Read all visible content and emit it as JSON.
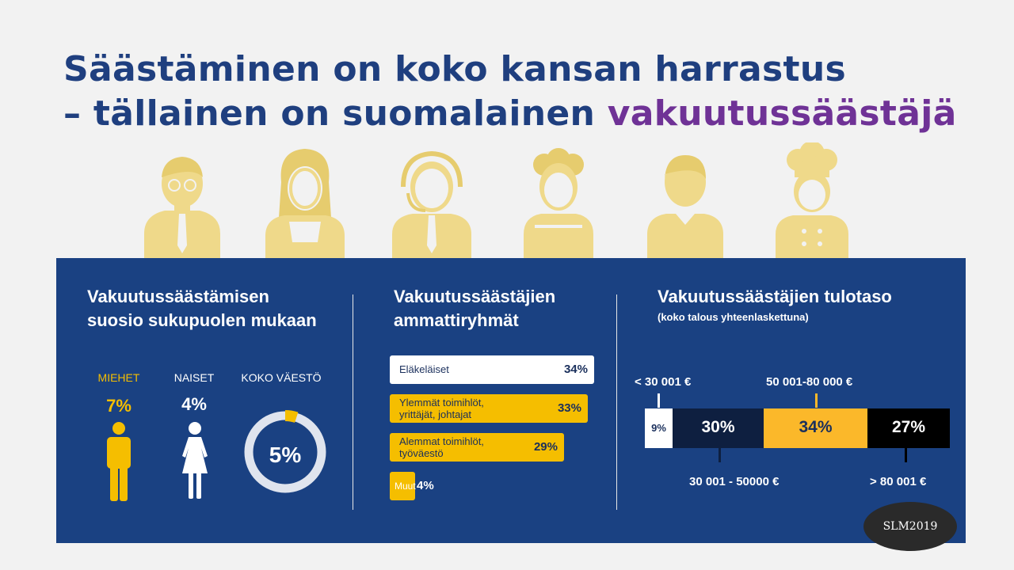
{
  "title": {
    "line1": "Säästäminen on koko kansan harrastus",
    "line2_prefix": "– tällainen on suomalainen ",
    "line2_highlight": "vakuutussäästäjä"
  },
  "colors": {
    "navy": "#1a4182",
    "gold": "#f5be00",
    "purple": "#6f3296",
    "dark": "#0e1f40",
    "black": "#000000"
  },
  "gender": {
    "title_line1": "Vakuutussäästämisen",
    "title_line2": "suosio sukupuolen mukaan",
    "men_label": "MIEHET",
    "men_pct": "7%",
    "women_label": "NAISET",
    "women_pct": "4%",
    "all_label": "KOKO VÄESTÖ",
    "all_pct": "5%"
  },
  "occupation": {
    "title_line1": "Vakuutussäästäjien",
    "title_line2": "ammattiryhmät",
    "bars": [
      {
        "label_line1": "Eläkeläiset",
        "label_line2": "",
        "value_text": "34%"
      },
      {
        "label_line1": "Ylemmät toimihlöt,",
        "label_line2": "yrittäjät, johtajat",
        "value_text": "33%"
      },
      {
        "label_line1": "Alemmat toimihlöt,",
        "label_line2": "työväestö",
        "value_text": "29%"
      },
      {
        "label_line1": "Muut",
        "label_line2": "",
        "value_text": "4%"
      }
    ]
  },
  "income": {
    "title": "Vakuutussäästäjien tulotaso",
    "subtitle": "(koko talous yhteenlaskettuna)",
    "segments": [
      {
        "label": "< 30 001 €",
        "value_text": "9%"
      },
      {
        "label": "30 001 - 50000 €",
        "value_text": "30%"
      },
      {
        "label": "50 001-80 000 €",
        "value_text": "34%"
      },
      {
        "label": "> 80 001 €",
        "value_text": "27%"
      }
    ]
  },
  "chart_data": [
    {
      "type": "bar",
      "title": "Vakuutussäästämisen suosio sukupuolen mukaan",
      "categories": [
        "MIEHET",
        "NAISET",
        "KOKO VÄESTÖ"
      ],
      "values": [
        7,
        4,
        5
      ]
    },
    {
      "type": "bar",
      "title": "Vakuutussäästäjien ammattiryhmät",
      "categories": [
        "Eläkeläiset",
        "Ylemmät toimihlöt, yrittäjät, johtajat",
        "Alemmat toimihlöt, työväestö",
        "Muut"
      ],
      "values": [
        34,
        33,
        29,
        4
      ]
    },
    {
      "type": "bar",
      "title": "Vakuutussäästäjien tulotaso",
      "subtitle": "(koko talous yhteenlaskettuna)",
      "categories": [
        "< 30 001 €",
        "30 001 - 50000 €",
        "50 001-80 000 €",
        "> 80 001 €"
      ],
      "values": [
        9,
        30,
        34,
        27
      ]
    }
  ],
  "badge": "SLM2019"
}
